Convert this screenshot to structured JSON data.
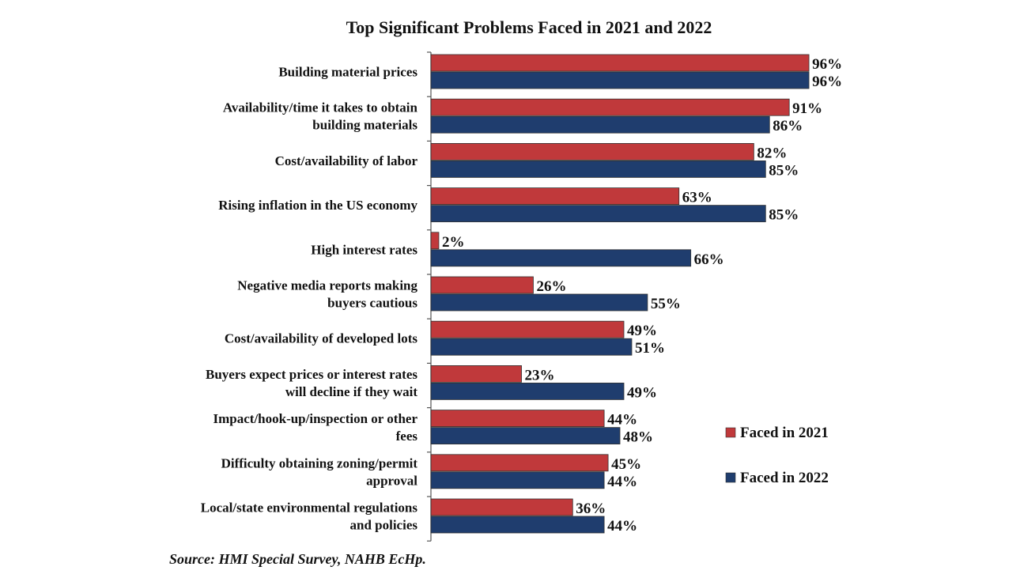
{
  "chart_data": {
    "type": "bar",
    "orientation": "horizontal",
    "title": "Top Significant Problems Faced in 2021 and 2022",
    "source": "Source: HMI Special Survey, NAHB EcHp.",
    "categories": [
      [
        "Building material prices"
      ],
      [
        "Availability/time it takes to obtain",
        "building materials"
      ],
      [
        "Cost/availability of labor"
      ],
      [
        "Rising inflation in the US economy"
      ],
      [
        "High interest rates"
      ],
      [
        "Negative media reports making",
        "buyers cautious"
      ],
      [
        "Cost/availability of developed lots"
      ],
      [
        "Buyers expect prices or interest rates",
        "will decline if they wait"
      ],
      [
        "Impact/hook-up/inspection or other",
        "fees"
      ],
      [
        "Difficulty obtaining zoning/permit",
        "approval"
      ],
      [
        "Local/state environmental regulations",
        "and policies"
      ]
    ],
    "series": [
      {
        "name": "Faced in 2021",
        "color": "#c0393b",
        "values": [
          96,
          91,
          82,
          63,
          2,
          26,
          49,
          23,
          44,
          45,
          36
        ]
      },
      {
        "name": "Faced in 2022",
        "color": "#1f3d6e",
        "values": [
          96,
          86,
          85,
          85,
          66,
          55,
          51,
          49,
          48,
          44,
          44
        ]
      }
    ],
    "value_suffix": "%",
    "xlim": [
      0,
      100
    ],
    "grid": false,
    "legend_position": "bottom-right"
  }
}
